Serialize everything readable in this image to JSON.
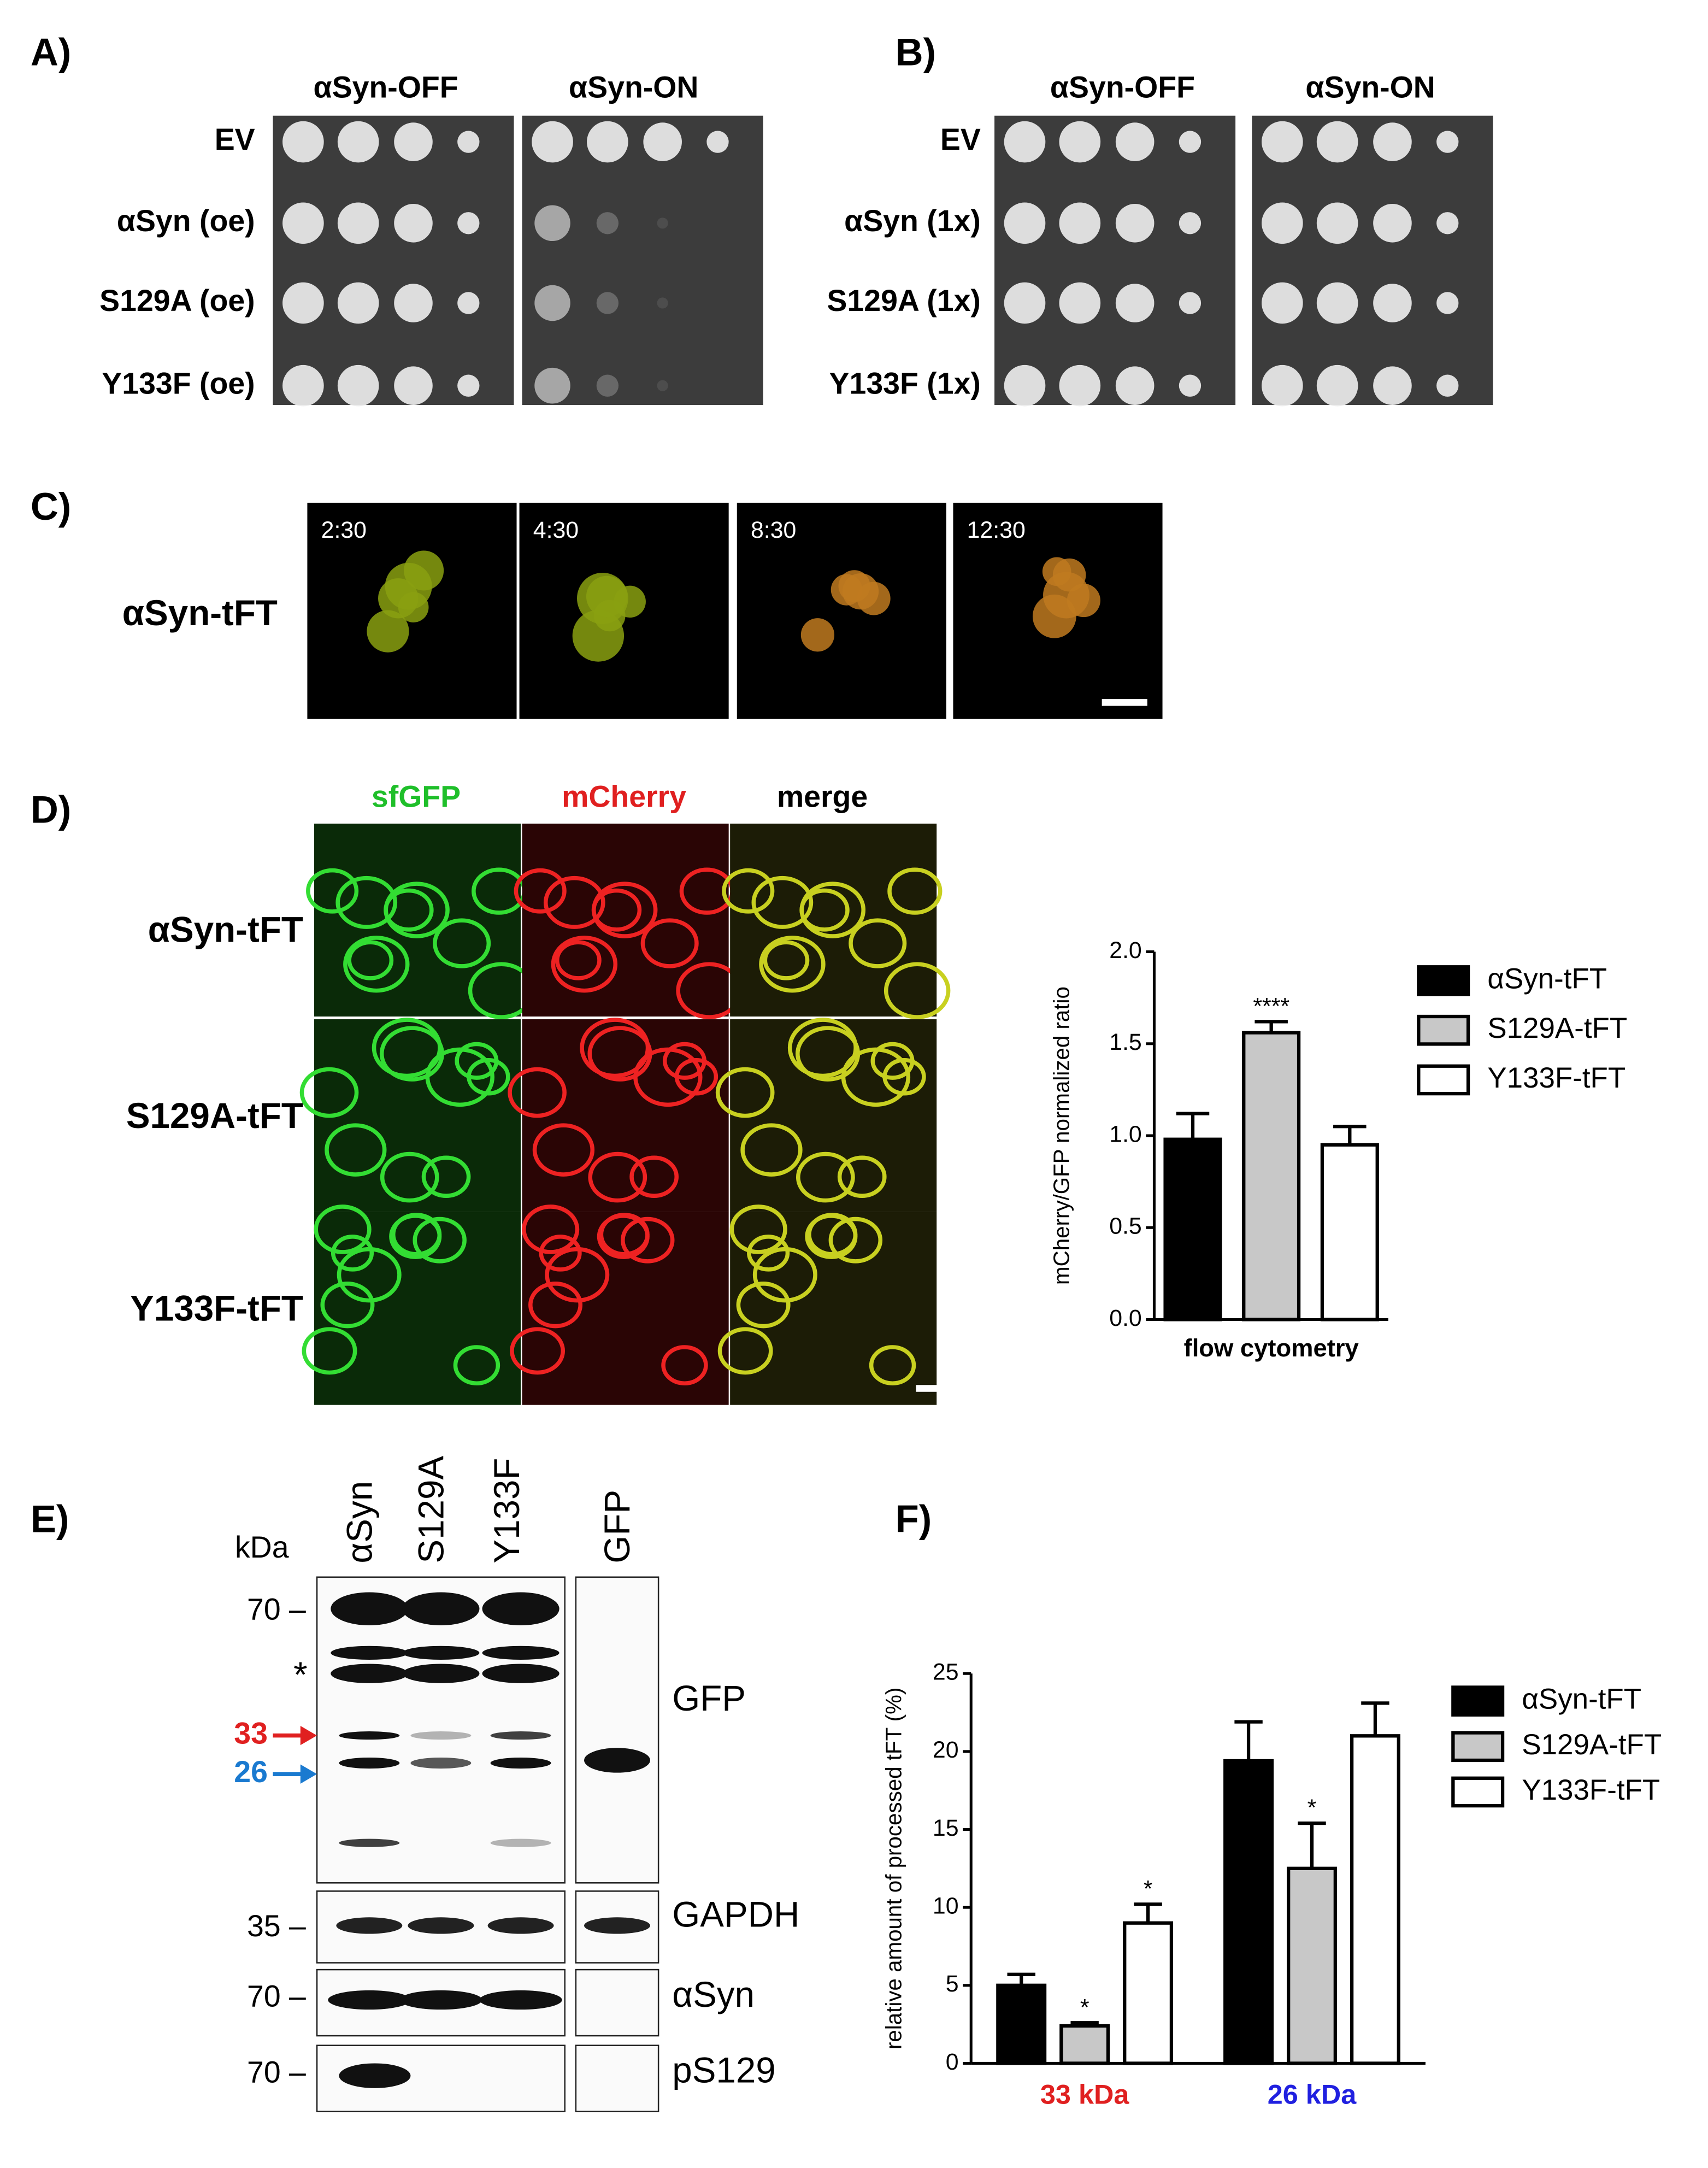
{
  "panel_labels": [
    "A)",
    "B)",
    "C)",
    "D)",
    "E)",
    "F)"
  ],
  "panel_a": {
    "columns": [
      "αSyn-OFF",
      "αSyn-ON"
    ],
    "rows": [
      "EV",
      "αSyn (oe)",
      "S129A (oe)",
      "Y133F (oe)"
    ]
  },
  "panel_b": {
    "columns": [
      "αSyn-OFF",
      "αSyn-ON"
    ],
    "rows": [
      "EV",
      "αSyn (1x)",
      "S129A (1x)",
      "Y133F (1x)"
    ]
  },
  "panel_c": {
    "row": "αSyn-tFT",
    "times": [
      "2:30",
      "4:30",
      "8:30",
      "12:30"
    ]
  },
  "panel_d": {
    "channels": [
      "sfGFP",
      "mCherry",
      "merge"
    ],
    "rows": [
      "αSyn-tFT",
      "S129A-tFT",
      "Y133F-tFT"
    ]
  },
  "panel_e": {
    "lanes": [
      "αSyn",
      "S129A",
      "Y133F",
      "GFP"
    ],
    "unit": "kDa",
    "markers": [
      "70 –",
      "35 –",
      "70 –",
      "70 –"
    ],
    "blots": [
      "GFP",
      "GAPDH",
      "αSyn",
      "pS129"
    ],
    "asterisk": "*",
    "arrows": [
      "33",
      "26"
    ]
  },
  "chart_data": [
    {
      "type": "bar",
      "y_label": "mCherry/GFP normalized ratio",
      "x_label": "flow cytometry",
      "ylim": [
        0,
        2
      ],
      "yticks": [
        {
          "value": 0,
          "label": "0.0"
        },
        {
          "value": 0.5,
          "label": "0.5"
        },
        {
          "value": 1,
          "label": "1.0"
        },
        {
          "value": 1.5,
          "label": "1.5"
        },
        {
          "value": 2,
          "label": "2.0"
        }
      ],
      "series": [
        {
          "name": "αSyn-tFT",
          "color": "#000000",
          "values": [
            0.98
          ],
          "errors": [
            0.14
          ]
        },
        {
          "name": "S129A-tFT",
          "color": "#c8c8c8",
          "values": [
            1.56
          ],
          "errors": [
            0.06
          ],
          "significance": [
            "****"
          ]
        },
        {
          "name": "Y133F-tFT",
          "color": "#ffffff",
          "values": [
            0.95
          ],
          "errors": [
            0.1
          ]
        }
      ]
    },
    {
      "type": "grouped_bar",
      "y_label": "relative amount of processed tFT (%)",
      "categories": [
        "33 kDa",
        "26 kDa"
      ],
      "category_colors": [
        "#e02020",
        "#2020e0"
      ],
      "ylim": [
        0,
        25
      ],
      "yticks": [
        0,
        5,
        10,
        15,
        20,
        25
      ],
      "series": [
        {
          "name": "αSyn-tFT",
          "color": "#000000",
          "values": [
            5.0,
            19.4
          ],
          "errors": [
            0.7,
            2.5
          ]
        },
        {
          "name": "S129A-tFT",
          "color": "#c8c8c8",
          "values": [
            2.4,
            12.5
          ],
          "errors": [
            0.2,
            2.9
          ],
          "significance": [
            "*",
            "*"
          ]
        },
        {
          "name": "Y133F-tFT",
          "color": "#ffffff",
          "values": [
            9.0,
            21.0
          ],
          "errors": [
            1.2,
            2.1
          ],
          "significance": [
            "*",
            null
          ]
        }
      ]
    }
  ]
}
